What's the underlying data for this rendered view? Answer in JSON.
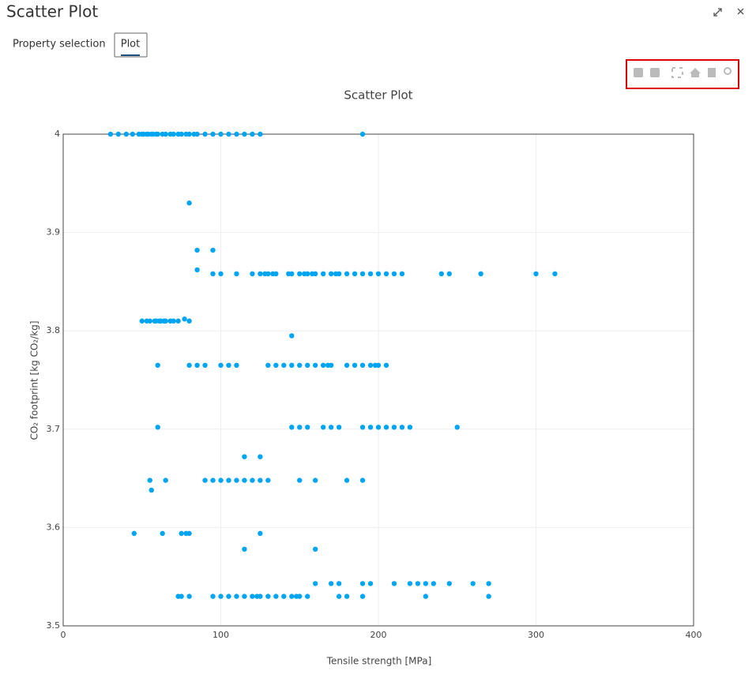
{
  "header": {
    "title": "Scatter Plot"
  },
  "tabs": [
    "Property selection",
    "Plot"
  ],
  "chart_data": {
    "type": "scatter",
    "title": "Scatter Plot",
    "x_label": "Tensile strength [MPa]",
    "y_label": "CO₂ footprint [kg CO₂/kg]",
    "color": "#00a5f2",
    "grid": true,
    "xlim": [
      0,
      400
    ],
    "xticks": [
      0,
      100,
      200,
      300,
      400
    ],
    "ylim": [
      3.5,
      4
    ],
    "yticks": [
      3.5,
      3.6,
      3.7,
      3.8,
      3.9,
      4
    ],
    "x": [
      30,
      35,
      40,
      44,
      48,
      50,
      51,
      53,
      54,
      56,
      57,
      59,
      60,
      63,
      65,
      68,
      70,
      73,
      75,
      78,
      80,
      83,
      85,
      90,
      95,
      100,
      105,
      110,
      115,
      120,
      125,
      190,
      80,
      85,
      95,
      85,
      95,
      100,
      110,
      120,
      125,
      128,
      130,
      133,
      135,
      143,
      145,
      150,
      153,
      155,
      158,
      160,
      165,
      170,
      173,
      175,
      180,
      185,
      190,
      195,
      200,
      205,
      210,
      215,
      240,
      245,
      265,
      300,
      312,
      50,
      53,
      55,
      58,
      59,
      61,
      62,
      64,
      65,
      68,
      70,
      73,
      80,
      77,
      145,
      60,
      80,
      85,
      90,
      100,
      105,
      110,
      130,
      135,
      140,
      145,
      150,
      155,
      160,
      165,
      168,
      170,
      180,
      185,
      190,
      195,
      198,
      200,
      205,
      60,
      145,
      150,
      155,
      165,
      170,
      175,
      190,
      195,
      200,
      205,
      210,
      215,
      220,
      250,
      115,
      125,
      55,
      65,
      90,
      95,
      100,
      105,
      110,
      115,
      120,
      125,
      130,
      150,
      160,
      180,
      190,
      56,
      45,
      63,
      75,
      78,
      80,
      125,
      115,
      160,
      160,
      170,
      175,
      190,
      195,
      210,
      220,
      225,
      230,
      235,
      245,
      260,
      270,
      73,
      75,
      80,
      95,
      100,
      105,
      110,
      115,
      120,
      123,
      125,
      130,
      135,
      140,
      145,
      148,
      150,
      155,
      175,
      180,
      190,
      230,
      270
    ],
    "y": [
      4,
      4,
      4,
      4,
      4,
      4,
      4,
      4,
      4,
      4,
      4,
      4,
      4,
      4,
      4,
      4,
      4,
      4,
      4,
      4,
      4,
      4,
      4,
      4,
      4,
      4,
      4,
      4,
      4,
      4,
      4,
      4,
      3.93,
      3.882,
      3.882,
      3.862,
      3.858,
      3.858,
      3.858,
      3.858,
      3.858,
      3.858,
      3.858,
      3.858,
      3.858,
      3.858,
      3.858,
      3.858,
      3.858,
      3.858,
      3.858,
      3.858,
      3.858,
      3.858,
      3.858,
      3.858,
      3.858,
      3.858,
      3.858,
      3.858,
      3.858,
      3.858,
      3.858,
      3.858,
      3.858,
      3.858,
      3.858,
      3.858,
      3.858,
      3.81,
      3.81,
      3.81,
      3.81,
      3.81,
      3.81,
      3.81,
      3.81,
      3.81,
      3.81,
      3.81,
      3.81,
      3.81,
      3.812,
      3.795,
      3.765,
      3.765,
      3.765,
      3.765,
      3.765,
      3.765,
      3.765,
      3.765,
      3.765,
      3.765,
      3.765,
      3.765,
      3.765,
      3.765,
      3.765,
      3.765,
      3.765,
      3.765,
      3.765,
      3.765,
      3.765,
      3.765,
      3.765,
      3.765,
      3.702,
      3.702,
      3.702,
      3.702,
      3.702,
      3.702,
      3.702,
      3.702,
      3.702,
      3.702,
      3.702,
      3.702,
      3.702,
      3.702,
      3.702,
      3.672,
      3.672,
      3.648,
      3.648,
      3.648,
      3.648,
      3.648,
      3.648,
      3.648,
      3.648,
      3.648,
      3.648,
      3.648,
      3.648,
      3.648,
      3.648,
      3.648,
      3.638,
      3.594,
      3.594,
      3.594,
      3.594,
      3.594,
      3.594,
      3.578,
      3.578,
      3.543,
      3.543,
      3.543,
      3.543,
      3.543,
      3.543,
      3.543,
      3.543,
      3.543,
      3.543,
      3.543,
      3.543,
      3.543,
      3.53,
      3.53,
      3.53,
      3.53,
      3.53,
      3.53,
      3.53,
      3.53,
      3.53,
      3.53,
      3.53,
      3.53,
      3.53,
      3.53,
      3.53,
      3.53,
      3.53,
      3.53,
      3.53,
      3.53,
      3.53,
      3.53,
      3.53
    ]
  }
}
